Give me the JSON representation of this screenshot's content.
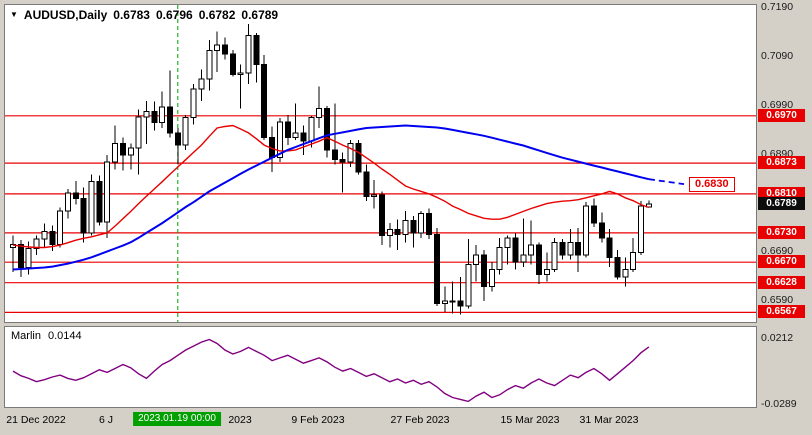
{
  "header": {
    "symbol_period": "AUDUSD,Daily",
    "open": "0.6783",
    "high": "0.6796",
    "low": "0.6782",
    "close": "0.6789"
  },
  "indicator": {
    "name": "Marlin",
    "value": "0.0144",
    "axis_ticks": [
      "0.0212",
      "-0.0289"
    ]
  },
  "price_axis": {
    "ticks": [
      "0.7190",
      "0.7090",
      "0.6990",
      "0.6890",
      "0.6790",
      "0.6690",
      "0.6590"
    ],
    "bid_label": "0.6789",
    "bid_value": 0.6789
  },
  "chart_meta": {
    "target_label": "0.6830"
  },
  "time_axis": {
    "labels": [
      {
        "text": "21 Dec 2022",
        "center_index": 3
      },
      {
        "text": "6 J",
        "center_index": 12
      },
      {
        "text": "2023",
        "center_index": 29
      },
      {
        "text": "9 Feb 2023",
        "center_index": 39
      },
      {
        "text": "27 Feb 2023",
        "center_index": 52
      },
      {
        "text": "15 Mar 2023",
        "center_index": 66
      },
      {
        "text": "31 Mar 2023",
        "center_index": 76
      }
    ],
    "highlight": {
      "text": "2023.01.19 00:00",
      "center_index": 21
    }
  },
  "colors": {
    "level": "#e80000",
    "ma_blue": "#0000f0",
    "ma_red": "#e80000",
    "marlin": "#800080",
    "vline": "#00a000",
    "up_candle": "#ffffff",
    "down_candle": "#000000",
    "level_box_bg": "#e80000",
    "bid_box_bg": "#0d0d0d",
    "highlight_bg": "#00a000"
  },
  "chart_data": {
    "type": "candlestick",
    "symbol": "AUDUSD",
    "timeframe": "Daily",
    "title": "AUDUSD,Daily",
    "ohlc_current": {
      "open": 0.6783,
      "high": 0.6796,
      "low": 0.6782,
      "close": 0.6789
    },
    "ylim": [
      0.6547,
      0.7197
    ],
    "levels": [
      0.697,
      0.6873,
      0.681,
      0.673,
      0.667,
      0.6628,
      0.6567
    ],
    "target_value": 0.683,
    "vertical_line_index": 21,
    "vertical_line_date": "2023.01.19 00:00",
    "candles": [
      [
        0.67,
        0.6725,
        0.665,
        0.6706
      ],
      [
        0.6706,
        0.6715,
        0.664,
        0.6659
      ],
      [
        0.6659,
        0.6712,
        0.6645,
        0.6698
      ],
      [
        0.6698,
        0.6725,
        0.6685,
        0.6718
      ],
      [
        0.6718,
        0.6749,
        0.67,
        0.6733
      ],
      [
        0.6733,
        0.6745,
        0.6693,
        0.6706
      ],
      [
        0.6706,
        0.6782,
        0.67,
        0.6775
      ],
      [
        0.6775,
        0.682,
        0.676,
        0.6812
      ],
      [
        0.6812,
        0.6836,
        0.6788,
        0.68
      ],
      [
        0.68,
        0.6823,
        0.671,
        0.673
      ],
      [
        0.673,
        0.685,
        0.6725,
        0.6835
      ],
      [
        0.6835,
        0.6848,
        0.6745,
        0.6752
      ],
      [
        0.6752,
        0.689,
        0.672,
        0.6875
      ],
      [
        0.6875,
        0.695,
        0.686,
        0.6913
      ],
      [
        0.6913,
        0.6925,
        0.6858,
        0.689
      ],
      [
        0.689,
        0.6913,
        0.686,
        0.6904
      ],
      [
        0.6904,
        0.6983,
        0.685,
        0.6967
      ],
      [
        0.6967,
        0.7,
        0.6912,
        0.6979
      ],
      [
        0.6979,
        0.6999,
        0.694,
        0.6956
      ],
      [
        0.6956,
        0.702,
        0.6945,
        0.6988
      ],
      [
        0.6988,
        0.7063,
        0.6925,
        0.6935
      ],
      [
        0.6935,
        0.6945,
        0.687,
        0.691
      ],
      [
        0.691,
        0.6972,
        0.69,
        0.6966
      ],
      [
        0.6966,
        0.7035,
        0.6952,
        0.7025
      ],
      [
        0.7025,
        0.7065,
        0.7,
        0.7045
      ],
      [
        0.7045,
        0.7125,
        0.7022,
        0.7104
      ],
      [
        0.7104,
        0.7143,
        0.706,
        0.7115
      ],
      [
        0.7115,
        0.713,
        0.7085,
        0.7097
      ],
      [
        0.7097,
        0.7105,
        0.705,
        0.7055
      ],
      [
        0.7055,
        0.7075,
        0.6985,
        0.7058
      ],
      [
        0.7058,
        0.7158,
        0.7035,
        0.7134
      ],
      [
        0.7134,
        0.714,
        0.7038,
        0.7075
      ],
      [
        0.7075,
        0.7095,
        0.692,
        0.6925
      ],
      [
        0.6925,
        0.6948,
        0.6855,
        0.6885
      ],
      [
        0.6885,
        0.6965,
        0.6875,
        0.6957
      ],
      [
        0.6957,
        0.6972,
        0.691,
        0.6925
      ],
      [
        0.6925,
        0.6995,
        0.692,
        0.6935
      ],
      [
        0.6935,
        0.695,
        0.689,
        0.6918
      ],
      [
        0.6918,
        0.697,
        0.6905,
        0.6966
      ],
      [
        0.6966,
        0.703,
        0.6945,
        0.6985
      ],
      [
        0.6985,
        0.699,
        0.6885,
        0.69
      ],
      [
        0.69,
        0.6995,
        0.687,
        0.688
      ],
      [
        0.688,
        0.6895,
        0.6813,
        0.6875
      ],
      [
        0.6875,
        0.692,
        0.6865,
        0.6913
      ],
      [
        0.6913,
        0.692,
        0.685,
        0.6855
      ],
      [
        0.6855,
        0.687,
        0.6795,
        0.6805
      ],
      [
        0.6805,
        0.6838,
        0.678,
        0.6808
      ],
      [
        0.6808,
        0.6815,
        0.6705,
        0.6725
      ],
      [
        0.6725,
        0.675,
        0.67,
        0.6737
      ],
      [
        0.6737,
        0.6757,
        0.6695,
        0.6727
      ],
      [
        0.6727,
        0.6775,
        0.671,
        0.6755
      ],
      [
        0.6755,
        0.6765,
        0.67,
        0.673
      ],
      [
        0.673,
        0.6775,
        0.672,
        0.677
      ],
      [
        0.677,
        0.678,
        0.6718,
        0.6727
      ],
      [
        0.6727,
        0.674,
        0.658,
        0.6585
      ],
      [
        0.6585,
        0.662,
        0.6568,
        0.659
      ],
      [
        0.659,
        0.663,
        0.6565,
        0.659
      ],
      [
        0.659,
        0.664,
        0.6563,
        0.658
      ],
      [
        0.658,
        0.6717,
        0.6575,
        0.6665
      ],
      [
        0.6665,
        0.6705,
        0.663,
        0.6685
      ],
      [
        0.6685,
        0.6695,
        0.659,
        0.662
      ],
      [
        0.662,
        0.667,
        0.661,
        0.6655
      ],
      [
        0.6655,
        0.672,
        0.6645,
        0.67
      ],
      [
        0.67,
        0.6725,
        0.6665,
        0.672
      ],
      [
        0.672,
        0.673,
        0.6655,
        0.667
      ],
      [
        0.667,
        0.676,
        0.666,
        0.6685
      ],
      [
        0.6685,
        0.6755,
        0.6665,
        0.6705
      ],
      [
        0.6705,
        0.671,
        0.6625,
        0.6645
      ],
      [
        0.6645,
        0.669,
        0.663,
        0.6655
      ],
      [
        0.6655,
        0.672,
        0.665,
        0.671
      ],
      [
        0.671,
        0.6718,
        0.6675,
        0.6685
      ],
      [
        0.6685,
        0.6738,
        0.6675,
        0.671
      ],
      [
        0.671,
        0.674,
        0.665,
        0.6685
      ],
      [
        0.6685,
        0.6793,
        0.668,
        0.6785
      ],
      [
        0.6785,
        0.68,
        0.6742,
        0.675
      ],
      [
        0.675,
        0.6772,
        0.671,
        0.672
      ],
      [
        0.672,
        0.6738,
        0.666,
        0.668
      ],
      [
        0.668,
        0.6695,
        0.6635,
        0.664
      ],
      [
        0.664,
        0.668,
        0.662,
        0.6655
      ],
      [
        0.6655,
        0.672,
        0.665,
        0.669
      ],
      [
        0.669,
        0.6795,
        0.6685,
        0.6785
      ],
      [
        0.6783,
        0.6796,
        0.6782,
        0.6789
      ]
    ],
    "ma_blue": [
      0.6655,
      0.6656,
      0.6657,
      0.6658,
      0.6659,
      0.6661,
      0.6664,
      0.6667,
      0.6671,
      0.6675,
      0.668,
      0.6686,
      0.6692,
      0.6698,
      0.6704,
      0.6711,
      0.672,
      0.673,
      0.674,
      0.675,
      0.6761,
      0.6772,
      0.6783,
      0.6793,
      0.6804,
      0.6815,
      0.6824,
      0.6833,
      0.6842,
      0.6851,
      0.686,
      0.6868,
      0.6876,
      0.6884,
      0.6892,
      0.69,
      0.6906,
      0.6912,
      0.6918,
      0.6924,
      0.693,
      0.6933,
      0.6936,
      0.6939,
      0.6942,
      0.6945,
      0.6946,
      0.6947,
      0.6948,
      0.6949,
      0.695,
      0.6949,
      0.6948,
      0.6947,
      0.6946,
      0.6944,
      0.6941,
      0.6938,
      0.6935,
      0.6932,
      0.6929,
      0.6925,
      0.6921,
      0.6917,
      0.6913,
      0.6909,
      0.6904,
      0.6899,
      0.6894,
      0.6889,
      0.6884,
      0.688,
      0.6876,
      0.6872,
      0.6868,
      0.6864,
      0.686,
      0.6856,
      0.6852,
      0.6848,
      0.6844,
      0.684
    ],
    "ma_red": [
      0.6705,
      0.6703,
      0.6701,
      0.67,
      0.67,
      0.6702,
      0.6705,
      0.671,
      0.6715,
      0.6719,
      0.6722,
      0.6726,
      0.673,
      0.6744,
      0.6759,
      0.6774,
      0.679,
      0.6805,
      0.682,
      0.6835,
      0.685,
      0.6865,
      0.688,
      0.6895,
      0.691,
      0.6928,
      0.6945,
      0.6948,
      0.695,
      0.6943,
      0.6935,
      0.6923,
      0.691,
      0.6903,
      0.6898,
      0.6898,
      0.69,
      0.6906,
      0.6912,
      0.6918,
      0.6925,
      0.6918,
      0.691,
      0.6903,
      0.6895,
      0.6884,
      0.6873,
      0.6861,
      0.685,
      0.6838,
      0.6826,
      0.682,
      0.6815,
      0.681,
      0.6803,
      0.6795,
      0.6785,
      0.6778,
      0.677,
      0.6765,
      0.676,
      0.6758,
      0.6758,
      0.6762,
      0.6768,
      0.6774,
      0.678,
      0.6785,
      0.679,
      0.6793,
      0.6795,
      0.6796,
      0.6798,
      0.6802,
      0.6806,
      0.681,
      0.6815,
      0.681,
      0.6802,
      0.6796,
      0.6788,
      0.6782
    ],
    "marlin": {
      "name": "Marlin",
      "current": 0.0144,
      "ylim": [
        -0.0327,
        0.0295
      ],
      "axis_ticks": [
        0.0212,
        -0.0289
      ],
      "values": [
        -0.004,
        -0.0075,
        -0.0095,
        -0.012,
        -0.0105,
        -0.0085,
        -0.007,
        -0.0095,
        -0.011,
        -0.009,
        -0.006,
        -0.003,
        -0.005,
        -0.002,
        0.001,
        -0.0015,
        -0.006,
        -0.0095,
        -0.004,
        0.001,
        0.004,
        0.008,
        0.012,
        0.015,
        0.018,
        0.02,
        0.017,
        0.012,
        0.009,
        0.011,
        0.014,
        0.011,
        0.008,
        0.004,
        0.006,
        0.008,
        0.005,
        0.002,
        0.004,
        0.006,
        0.003,
        -0.001,
        -0.004,
        -0.002,
        -0.005,
        -0.008,
        -0.006,
        -0.009,
        -0.012,
        -0.01,
        -0.013,
        -0.011,
        -0.014,
        -0.012,
        -0.016,
        -0.021,
        -0.024,
        -0.0255,
        -0.027,
        -0.023,
        -0.02,
        -0.024,
        -0.022,
        -0.018,
        -0.015,
        -0.017,
        -0.013,
        -0.01,
        -0.013,
        -0.015,
        -0.011,
        -0.007,
        -0.009,
        -0.005,
        -0.002,
        -0.006,
        -0.011,
        -0.006,
        -0.001,
        0.004,
        0.01,
        0.0144
      ]
    }
  }
}
